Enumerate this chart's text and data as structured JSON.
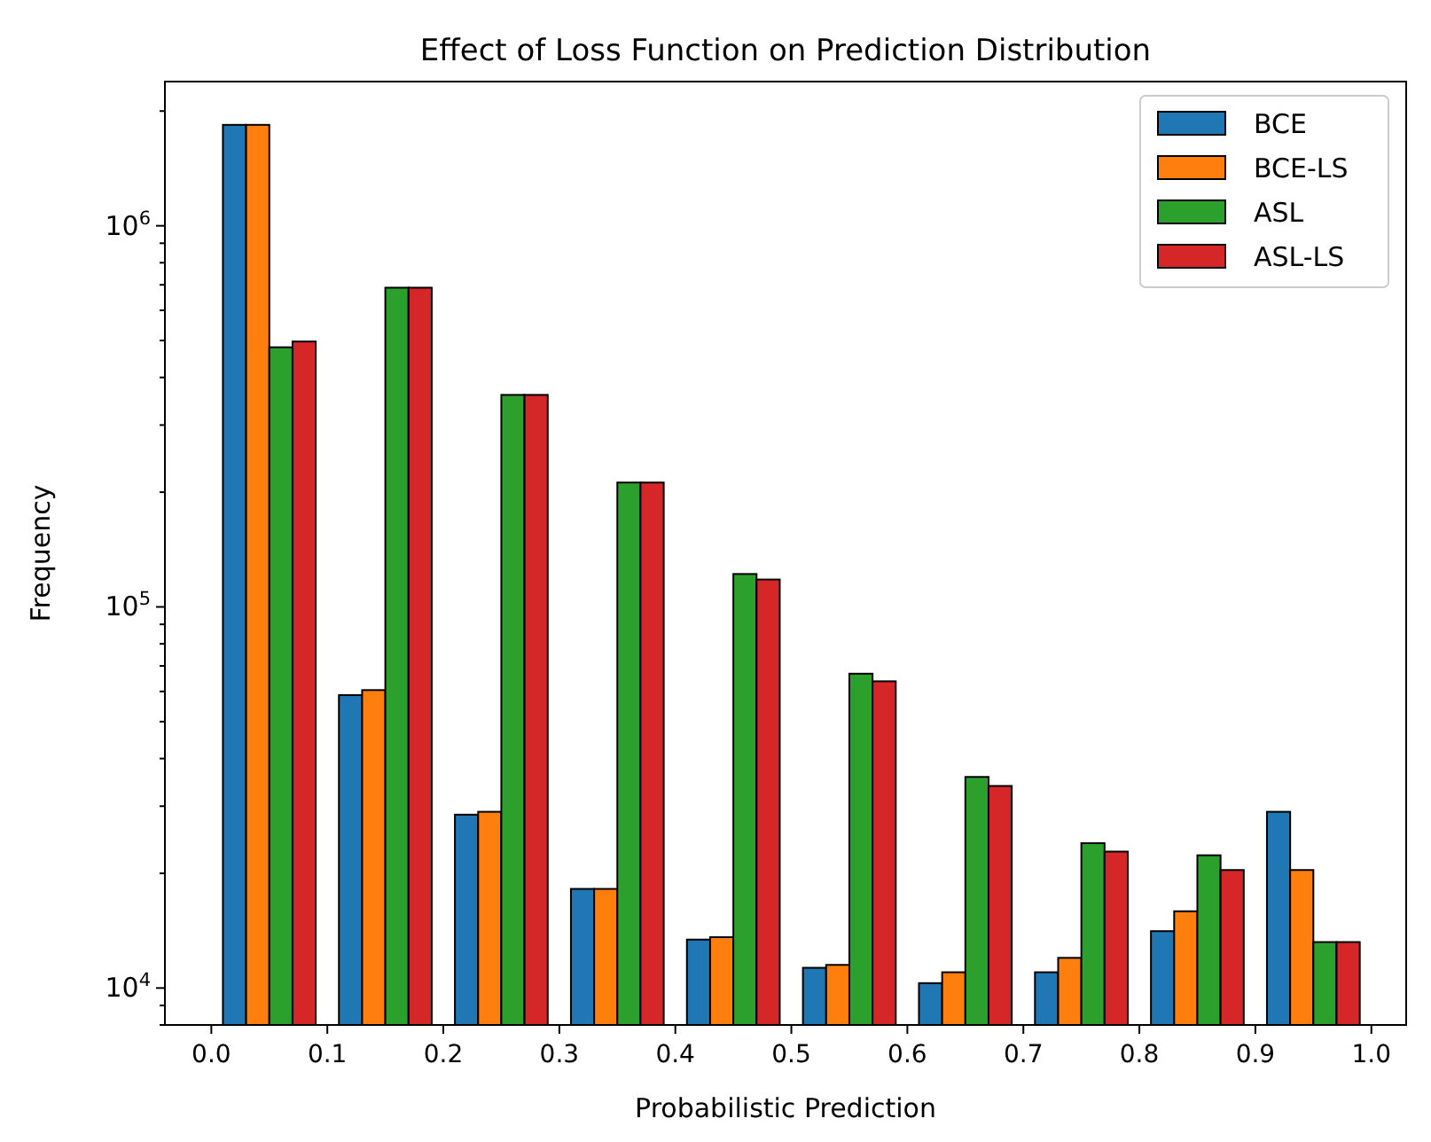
{
  "chart_data": {
    "type": "histogram",
    "title": "Effect of Loss Function on Prediction Distribution",
    "xlabel": "Probabilistic Prediction",
    "ylabel": "Frequency",
    "bins": [
      0,
      0.1,
      0.2,
      0.3,
      0.4,
      0.5,
      0.6,
      0.7,
      0.8,
      0.9,
      1.0
    ],
    "series": [
      {
        "name": "BCE",
        "color": "#1f77b4",
        "values": [
          1840000,
          58700,
          28500,
          18200,
          13400,
          11300,
          10300,
          11000,
          14100,
          29000
        ]
      },
      {
        "name": "BCE-LS",
        "color": "#ff7f0e",
        "values": [
          1840000,
          60500,
          29000,
          18200,
          13600,
          11500,
          11000,
          12000,
          15900,
          20400
        ]
      },
      {
        "name": "ASL",
        "color": "#2ca02c",
        "values": [
          480000,
          688000,
          360000,
          212000,
          122000,
          66800,
          35800,
          24000,
          22300,
          13200
        ]
      },
      {
        "name": "ASL-LS",
        "color": "#d62728",
        "values": [
          497000,
          688000,
          360000,
          212000,
          118000,
          63800,
          33900,
          22800,
          20400,
          13200
        ]
      }
    ],
    "xlim": [
      -0.04,
      1.03
    ],
    "xticks": [
      {
        "value": 0,
        "label": "0.0"
      },
      0.1,
      0.2,
      0.3,
      0.4,
      0.5,
      0.6,
      0.7,
      0.8,
      0.9,
      {
        "value": 1,
        "label": "1.0"
      }
    ],
    "log": "y",
    "ylim": [
      8000,
      2390000
    ],
    "yticks": [
      {
        "value": 8000,
        "label": null
      },
      {
        "value": 9000,
        "label": null
      },
      {
        "value": 10000,
        "label": "10$^{4}$"
      },
      {
        "value": 20000,
        "label": null
      },
      {
        "value": 30000,
        "label": null
      },
      {
        "value": 40000,
        "label": null
      },
      {
        "value": 50000,
        "label": null
      },
      {
        "value": 60000,
        "label": null
      },
      {
        "value": 70000,
        "label": null
      },
      {
        "value": 80000,
        "label": null
      },
      {
        "value": 90000,
        "label": null
      },
      {
        "value": 100000,
        "label": "10$^{5}$"
      },
      {
        "value": 200000,
        "label": null
      },
      {
        "value": 300000,
        "label": null
      },
      {
        "value": 400000,
        "label": null
      },
      {
        "value": 500000,
        "label": null
      },
      {
        "value": 600000,
        "label": null
      },
      {
        "value": 700000,
        "label": null
      },
      {
        "value": 800000,
        "label": null
      },
      {
        "value": 900000,
        "label": null
      },
      {
        "value": 1000000,
        "label": "10$^{6}$"
      },
      {
        "value": 2000000,
        "label": null
      }
    ],
    "grid": false,
    "legend": "top right"
  }
}
